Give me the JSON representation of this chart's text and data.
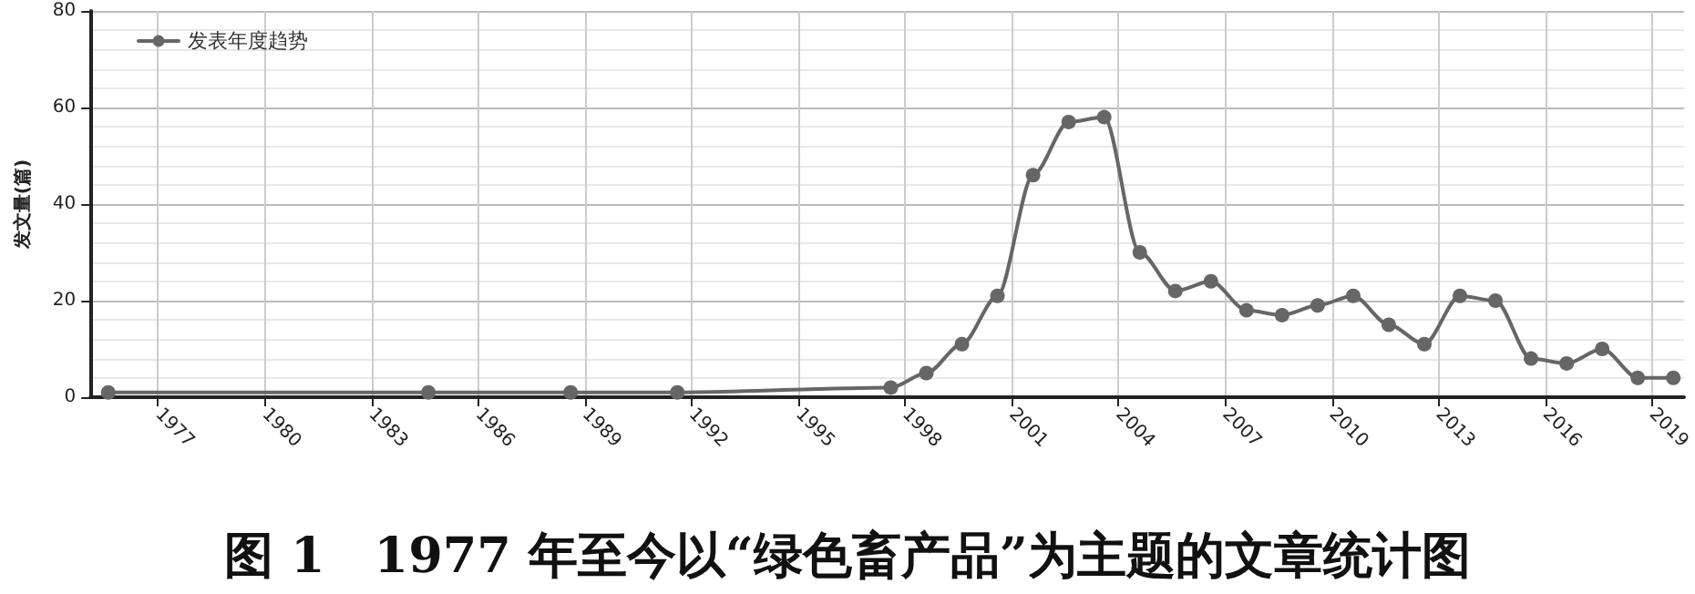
{
  "chart_data": {
    "type": "line",
    "title": "图 1　1977 年至今以“绿色畜产品”为主题的文章统计图",
    "ylabel": "发文量(篇)",
    "x": [
      1975.6,
      1984.6,
      1988.6,
      1991.6,
      1997.6,
      1998.6,
      1999.6,
      2000.6,
      2001.6,
      2002.6,
      2003.6,
      2004.6,
      2005.6,
      2006.6,
      2007.6,
      2008.6,
      2009.6,
      2010.6,
      2011.6,
      2012.6,
      2013.6,
      2014.6,
      2015.6,
      2016.6,
      2017.6,
      2018.6,
      2019.6
    ],
    "series": [
      {
        "name": "发表年度趋势",
        "color": "#666666",
        "values": [
          1,
          1,
          1,
          1,
          2,
          5,
          11,
          21,
          46,
          57,
          58,
          30,
          22,
          24,
          18,
          17,
          19,
          21,
          15,
          11,
          21,
          20,
          8,
          7,
          10,
          4,
          4
        ]
      }
    ],
    "xlim": [
      1975.1,
      2019.9
    ],
    "xticks": [
      1977,
      1980,
      1983,
      1986,
      1989,
      1992,
      1995,
      1998,
      2001,
      2004,
      2007,
      2010,
      2013,
      2016,
      2019
    ],
    "ylim": [
      0,
      80
    ],
    "yticks": [
      0,
      20,
      40,
      60,
      80
    ],
    "grid": true,
    "legend": "top left",
    "marker": "circle",
    "line_style": "solid"
  }
}
